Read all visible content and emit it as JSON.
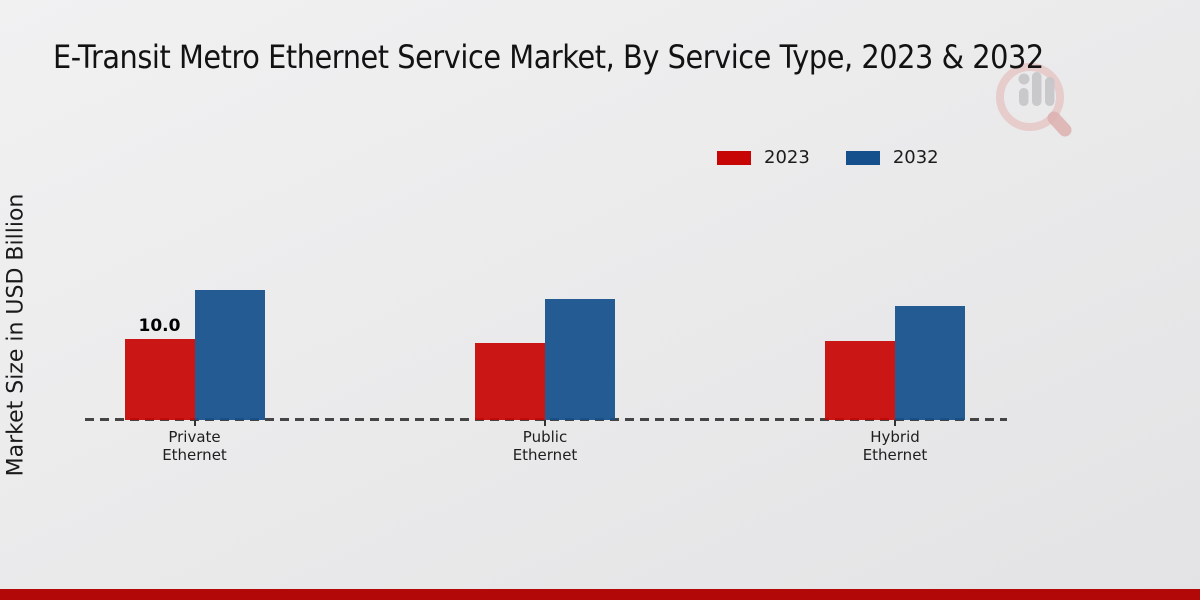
{
  "page": {
    "background": "#eaeaec",
    "footer_bar_color": "#b30808"
  },
  "watermark": {
    "icon": "magnifier-bar-chart-logo"
  },
  "chart_data": {
    "type": "bar",
    "title": "E-Transit Metro Ethernet Service Market, By Service Type, 2023 & 2032",
    "xlabel": "",
    "ylabel": "Market Size in USD Billion",
    "categories": [
      "Private Ethernet",
      "Public Ethernet",
      "Hybrid Ethernet"
    ],
    "series": [
      {
        "name": "2023",
        "color": "#c80505",
        "values": [
          10.0,
          9.5,
          9.7
        ]
      },
      {
        "name": "2032",
        "color": "#15508c",
        "values": [
          16.0,
          15.0,
          14.1
        ]
      }
    ],
    "annotations": [
      {
        "series": 0,
        "index": 0,
        "text": "10.0"
      }
    ],
    "ylim": [
      0,
      20
    ],
    "grid": false,
    "legend_position": "upper right",
    "baseline_style": "dashed"
  }
}
